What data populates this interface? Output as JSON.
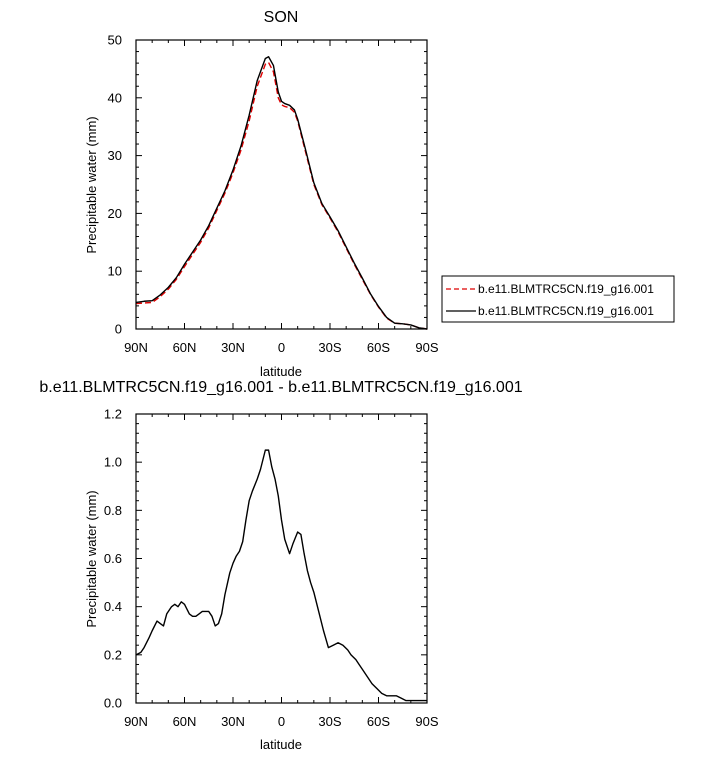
{
  "chart_data": [
    {
      "type": "line",
      "title": "SON",
      "xlabel": "latitude",
      "ylabel": "Precipitable water (mm)",
      "xlim": [
        90,
        -90
      ],
      "ylim": [
        0,
        50
      ],
      "x_ticks": [
        90,
        60,
        30,
        0,
        -30,
        -60,
        -90
      ],
      "x_tick_labels": [
        "90N",
        "60N",
        "30N",
        "0",
        "30S",
        "60S",
        "90S"
      ],
      "y_ticks": [
        0,
        10,
        20,
        30,
        40,
        50
      ],
      "y_tick_labels": [
        "0",
        "10",
        "20",
        "30",
        "40",
        "50"
      ],
      "legend_position": "right",
      "series": [
        {
          "name": "b.e11.BLMTRC5CN.f19_g16.001",
          "color": "#dd0000",
          "style": "dashed",
          "x": [
            90,
            85,
            80,
            75,
            70,
            65,
            60,
            55,
            50,
            45,
            40,
            35,
            30,
            25,
            20,
            15,
            10,
            8,
            5,
            2,
            0,
            -2,
            -5,
            -8,
            -10,
            -15,
            -20,
            -25,
            -30,
            -35,
            -40,
            -45,
            -50,
            -55,
            -60,
            -65,
            -70,
            -75,
            -80,
            -85,
            -90
          ],
          "y": [
            4.4,
            4.5,
            4.6,
            5.6,
            6.9,
            8.6,
            10.8,
            12.9,
            15.0,
            17.5,
            20.5,
            23.5,
            27.0,
            31.0,
            36.0,
            42.0,
            45.8,
            46.1,
            44.5,
            40.0,
            38.8,
            38.5,
            38.3,
            37.5,
            36.0,
            30.5,
            25.0,
            21.5,
            19.2,
            16.8,
            14.0,
            11.2,
            8.6,
            6.0,
            3.8,
            1.9,
            1.0,
            0.9,
            0.7,
            0.2,
            0.0
          ]
        },
        {
          "name": "b.e11.BLMTRC5CN.f19_g16.001",
          "color": "#000000",
          "style": "solid",
          "x": [
            90,
            85,
            80,
            75,
            70,
            65,
            60,
            55,
            50,
            45,
            40,
            35,
            30,
            25,
            20,
            15,
            10,
            8,
            5,
            2,
            0,
            -2,
            -5,
            -8,
            -10,
            -15,
            -20,
            -25,
            -30,
            -35,
            -40,
            -45,
            -50,
            -55,
            -60,
            -65,
            -70,
            -75,
            -80,
            -85,
            -90
          ],
          "y": [
            4.6,
            4.8,
            4.9,
            5.9,
            7.2,
            8.9,
            11.2,
            13.3,
            15.4,
            17.9,
            20.9,
            23.9,
            27.5,
            31.7,
            37.0,
            43.0,
            46.8,
            47.1,
            45.6,
            41.0,
            39.4,
            39.0,
            38.7,
            37.9,
            36.3,
            30.9,
            25.3,
            21.7,
            19.4,
            17.0,
            14.2,
            11.4,
            8.8,
            6.1,
            3.9,
            2.0,
            1.0,
            0.9,
            0.7,
            0.2,
            0.0
          ]
        }
      ]
    },
    {
      "type": "line",
      "title": "b.e11.BLMTRC5CN.f19_g16.001 - b.e11.BLMTRC5CN.f19_g16.001",
      "xlabel": "latitude",
      "ylabel": "Precipitable water (mm)",
      "xlim": [
        90,
        -90
      ],
      "ylim": [
        0,
        1.2
      ],
      "x_ticks": [
        90,
        60,
        30,
        0,
        -30,
        -60,
        -90
      ],
      "x_tick_labels": [
        "90N",
        "60N",
        "30N",
        "0",
        "30S",
        "60S",
        "90S"
      ],
      "y_ticks": [
        0,
        0.2,
        0.4,
        0.6,
        0.8,
        1.0,
        1.2
      ],
      "y_tick_labels": [
        "0.0",
        "0.2",
        "0.4",
        "0.6",
        "0.8",
        "1.0",
        "1.2"
      ],
      "series": [
        {
          "color": "#000000",
          "style": "solid",
          "x": [
            90,
            87,
            85,
            82,
            80,
            77,
            75,
            73,
            71,
            68,
            66,
            64,
            62,
            60,
            57,
            55,
            53,
            51,
            49,
            47,
            45,
            43,
            41,
            39,
            37,
            35,
            32,
            30,
            28,
            26,
            24,
            22,
            20,
            18,
            15,
            13,
            10,
            8,
            6,
            4,
            2,
            0,
            -2,
            -5,
            -7,
            -10,
            -12,
            -14,
            -16,
            -18,
            -20,
            -23,
            -26,
            -29,
            -32,
            -35,
            -38,
            -41,
            -43,
            -46,
            -48,
            -50,
            -53,
            -56,
            -59,
            -62,
            -65,
            -68,
            -71,
            -74,
            -77,
            -80,
            -83,
            -86,
            -88,
            -90
          ],
          "y": [
            0.2,
            0.21,
            0.23,
            0.27,
            0.3,
            0.34,
            0.33,
            0.32,
            0.37,
            0.4,
            0.41,
            0.4,
            0.42,
            0.41,
            0.37,
            0.36,
            0.36,
            0.37,
            0.38,
            0.38,
            0.38,
            0.36,
            0.32,
            0.33,
            0.37,
            0.45,
            0.54,
            0.58,
            0.61,
            0.63,
            0.67,
            0.76,
            0.84,
            0.88,
            0.93,
            0.97,
            1.05,
            1.05,
            0.98,
            0.93,
            0.86,
            0.76,
            0.68,
            0.62,
            0.66,
            0.71,
            0.7,
            0.62,
            0.55,
            0.5,
            0.46,
            0.38,
            0.3,
            0.23,
            0.24,
            0.25,
            0.24,
            0.22,
            0.2,
            0.18,
            0.16,
            0.14,
            0.11,
            0.08,
            0.06,
            0.04,
            0.03,
            0.03,
            0.03,
            0.02,
            0.01,
            0.01,
            0.01,
            0.01,
            0.01,
            0.01
          ]
        }
      ]
    }
  ]
}
